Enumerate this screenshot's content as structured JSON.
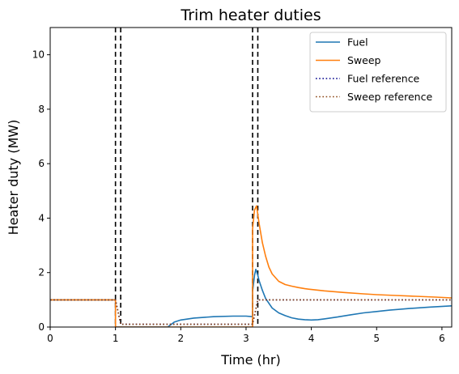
{
  "chart_data": {
    "type": "line",
    "title": "Trim heater duties",
    "xlabel": "Time (hr)",
    "ylabel": "Heater duty (MW)",
    "xlim": [
      0,
      6.15
    ],
    "ylim": [
      0,
      11
    ],
    "x_ticks": [
      0,
      1,
      2,
      3,
      4,
      5,
      6
    ],
    "y_ticks": [
      0,
      2,
      4,
      6,
      8,
      10
    ],
    "grid": false,
    "legend_position": "top-right",
    "vertical_lines": [
      1.0,
      1.08,
      3.1,
      3.18
    ],
    "series": [
      {
        "name": "Fuel",
        "color": "#1f77b4",
        "style": "solid",
        "x": [
          0,
          1.0,
          1.0,
          1.8,
          1.9,
          2.0,
          2.2,
          2.5,
          2.8,
          3.0,
          3.1,
          3.1,
          3.13,
          3.15,
          3.18,
          3.2,
          3.25,
          3.3,
          3.4,
          3.5,
          3.6,
          3.7,
          3.8,
          3.9,
          4.0,
          4.1,
          4.2,
          4.4,
          4.6,
          4.8,
          5.0,
          5.2,
          5.5,
          5.8,
          6.15
        ],
        "y": [
          1.0,
          1.0,
          0.0,
          0.0,
          0.18,
          0.26,
          0.33,
          0.38,
          0.4,
          0.4,
          0.38,
          1.3,
          1.9,
          2.12,
          1.9,
          1.7,
          1.35,
          1.05,
          0.7,
          0.52,
          0.42,
          0.34,
          0.29,
          0.27,
          0.26,
          0.27,
          0.3,
          0.37,
          0.45,
          0.52,
          0.57,
          0.62,
          0.68,
          0.73,
          0.78
        ]
      },
      {
        "name": "Sweep",
        "color": "#ff7f0e",
        "style": "solid",
        "x": [
          0,
          1.0,
          1.0,
          3.1,
          3.1,
          3.13,
          3.16,
          3.2,
          3.25,
          3.3,
          3.35,
          3.4,
          3.5,
          3.6,
          3.7,
          3.8,
          3.9,
          4.0,
          4.2,
          4.5,
          4.8,
          5.0,
          5.3,
          5.6,
          5.9,
          6.15
        ],
        "y": [
          1.0,
          1.0,
          0.0,
          0.0,
          3.6,
          4.3,
          4.45,
          3.8,
          3.1,
          2.6,
          2.2,
          1.95,
          1.68,
          1.56,
          1.5,
          1.45,
          1.41,
          1.38,
          1.33,
          1.27,
          1.22,
          1.19,
          1.16,
          1.13,
          1.1,
          1.07
        ]
      },
      {
        "name": "Fuel reference",
        "color": "#00008b",
        "style": "dotted",
        "x": [
          0,
          1.0,
          1.08,
          3.1,
          3.18,
          6.15
        ],
        "y": [
          1.0,
          1.0,
          0.1,
          0.1,
          1.0,
          1.0
        ]
      },
      {
        "name": "Sweep reference",
        "color": "#8b4513",
        "style": "dotted",
        "x": [
          0,
          1.0,
          1.08,
          3.1,
          3.18,
          6.15
        ],
        "y": [
          1.0,
          1.0,
          0.1,
          0.1,
          1.0,
          1.0
        ]
      }
    ]
  }
}
